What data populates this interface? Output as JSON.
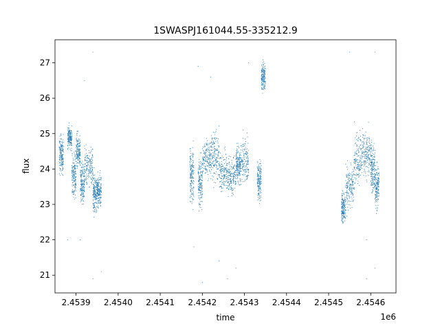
{
  "chart_data": {
    "type": "scatter",
    "title": "1SWASPJ161044.55-335212.9",
    "xlabel": "time",
    "ylabel": "flux",
    "x_offset_label": "1e6",
    "xlim": [
      2.45385,
      2.45466
    ],
    "ylim": [
      20.5,
      27.65
    ],
    "x_ticks": [
      2.4539,
      2.454,
      2.4541,
      2.4542,
      2.4543,
      2.4544,
      2.4545,
      2.4546
    ],
    "x_tick_labels": [
      "2.4539",
      "2.4540",
      "2.4541",
      "2.4542",
      "2.4543",
      "2.4544",
      "2.4545",
      "2.4546"
    ],
    "y_ticks": [
      21,
      22,
      23,
      24,
      25,
      26,
      27
    ],
    "y_tick_labels": [
      "21",
      "22",
      "23",
      "24",
      "25",
      "26",
      "27"
    ],
    "grid": false,
    "legend": "none",
    "marker_color": "#1f77b4",
    "series": [
      {
        "clusters": [
          {
            "x_range": [
              2.45386,
              2.45387
            ],
            "y_center": 24.4,
            "y_spread": 0.5
          },
          {
            "x_range": [
              2.45388,
              2.45389
            ],
            "y_center": 24.9,
            "y_spread": 0.3
          },
          {
            "x_range": [
              2.45389,
              2.4539
            ],
            "y_center": 23.8,
            "y_spread": 0.6
          },
          {
            "x_range": [
              2.4539,
              2.45391
            ],
            "y_center": 24.5,
            "y_spread": 0.45
          },
          {
            "x_range": [
              2.45391,
              2.45392
            ],
            "y_center": 23.6,
            "y_spread": 0.5
          },
          {
            "x_range": [
              2.45392,
              2.45394
            ],
            "y_center": 24.1,
            "y_spread": 0.6
          },
          {
            "x_range": [
              2.45394,
              2.45395
            ],
            "y_center": 23.3,
            "y_spread": 0.5
          },
          {
            "x_range": [
              2.45395,
              2.45396
            ],
            "y_center": 23.4,
            "y_spread": 0.4
          },
          {
            "x_range": [
              2.45417,
              2.45418
            ],
            "y_center": 23.8,
            "y_spread": 0.8
          },
          {
            "x_range": [
              2.45419,
              2.4542
            ],
            "y_center": 23.6,
            "y_spread": 0.6
          },
          {
            "x_range": [
              2.4542,
              2.45422
            ],
            "y_center": 24.3,
            "y_spread": 0.5
          },
          {
            "x_range": [
              2.45422,
              2.45424
            ],
            "y_center": 24.4,
            "y_spread": 0.7
          },
          {
            "x_range": [
              2.45424,
              2.45426
            ],
            "y_center": 23.9,
            "y_spread": 0.5
          },
          {
            "x_range": [
              2.45426,
              2.45428
            ],
            "y_center": 23.8,
            "y_spread": 0.5
          },
          {
            "x_range": [
              2.45428,
              2.45429
            ],
            "y_center": 24.1,
            "y_spread": 0.5
          },
          {
            "x_range": [
              2.45429,
              2.45431
            ],
            "y_center": 24.2,
            "y_spread": 0.6
          },
          {
            "x_range": [
              2.45433,
              2.45434
            ],
            "y_center": 23.7,
            "y_spread": 0.5
          },
          {
            "x_range": [
              2.45434,
              2.45435
            ],
            "y_center": 26.6,
            "y_spread": 0.4
          },
          {
            "x_range": [
              2.45453,
              2.45454
            ],
            "y_center": 22.9,
            "y_spread": 0.4
          },
          {
            "x_range": [
              2.45454,
              2.45456
            ],
            "y_center": 23.5,
            "y_spread": 0.6
          },
          {
            "x_range": [
              2.45456,
              2.45458
            ],
            "y_center": 24.3,
            "y_spread": 0.7
          },
          {
            "x_range": [
              2.45458,
              2.4546
            ],
            "y_center": 24.4,
            "y_spread": 0.6
          },
          {
            "x_range": [
              2.4546,
              2.45461
            ],
            "y_center": 24.0,
            "y_spread": 0.7
          },
          {
            "x_range": [
              2.45461,
              2.45462
            ],
            "y_center": 23.5,
            "y_spread": 0.6
          }
        ],
        "outliers": [
          {
            "x": 2.45394,
            "y": 20.9
          },
          {
            "x": 2.45394,
            "y": 27.3
          },
          {
            "x": 2.45396,
            "y": 21.1
          },
          {
            "x": 2.45388,
            "y": 22.0
          },
          {
            "x": 2.45391,
            "y": 22.0
          },
          {
            "x": 2.45392,
            "y": 26.5
          },
          {
            "x": 2.4542,
            "y": 20.8
          },
          {
            "x": 2.45418,
            "y": 21.8
          },
          {
            "x": 2.45424,
            "y": 21.4
          },
          {
            "x": 2.45426,
            "y": 20.9
          },
          {
            "x": 2.45428,
            "y": 21.2
          },
          {
            "x": 2.45419,
            "y": 26.9
          },
          {
            "x": 2.45422,
            "y": 26.6
          },
          {
            "x": 2.45431,
            "y": 27.0
          },
          {
            "x": 2.45459,
            "y": 20.9
          },
          {
            "x": 2.45461,
            "y": 21.2
          },
          {
            "x": 2.45455,
            "y": 27.3
          },
          {
            "x": 2.45461,
            "y": 27.3
          },
          {
            "x": 2.45459,
            "y": 22.0
          }
        ]
      }
    ]
  }
}
